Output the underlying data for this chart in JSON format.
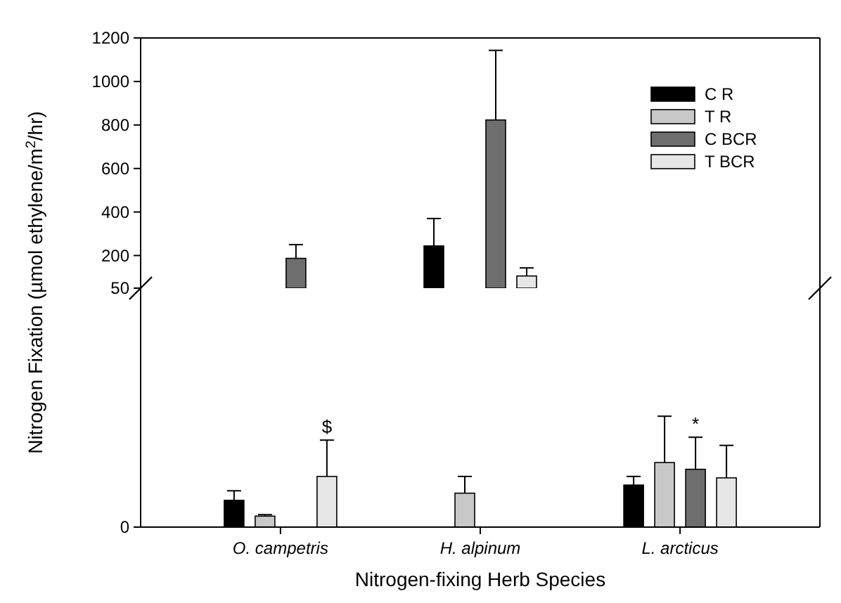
{
  "chart_data": [
    {
      "type": "bar",
      "ylabel": "Nitrogen Fixation (µmol ethylene/m$^{2}$/hr)",
      "categories": [
        null,
        null,
        null
      ],
      "ylim": [
        50,
        1200
      ],
      "yticks": [
        200,
        400,
        600,
        800,
        1000,
        1200
      ],
      "tick_labels": "y",
      "legend": "top right",
      "series": [
        {
          "name": "C R",
          "color": "#000000",
          "values": [
            null,
            244,
            null
          ],
          "errors": [
            null,
            [
              244,
              370
            ],
            null
          ]
        },
        {
          "name": "T R",
          "color": "#c8c8c8",
          "values": [
            null,
            null,
            null
          ]
        },
        {
          "name": "C BCR",
          "color": "#6e6e6e",
          "values": [
            187,
            823,
            null
          ],
          "errors": [
            [
              187,
              250
            ],
            [
              823,
              1143
            ],
            null
          ]
        },
        {
          "name": "T BCR",
          "color": "#e6e6e6",
          "values": [
            null,
            106,
            null
          ],
          "errors": [
            null,
            [
              106,
              143
            ],
            null
          ]
        }
      ]
    },
    {
      "type": "bar",
      "xlabel": "Nitrogen-fixing Herb Species",
      "categories": [
        "O. campetris",
        "H. alpinum",
        "L. arcticus"
      ],
      "ylim": [
        0,
        50
      ],
      "yticks": [
        0,
        50
      ],
      "series": [
        {
          "color": "#000000",
          "values": [
            5.6,
            null,
            8.8
          ],
          "errors": [
            [
              5.6,
              7.6
            ],
            null,
            [
              8.8,
              10.6
            ]
          ]
        },
        {
          "color": "#c8c8c8",
          "values": [
            2.3,
            7.1,
            13.5
          ],
          "errors": [
            [
              2.3,
              2.6
            ],
            [
              7.1,
              10.6
            ],
            [
              13.5,
              23.2
            ]
          ]
        },
        {
          "color": "#6e6e6e",
          "values": [
            null,
            null,
            12.1
          ],
          "errors": [
            null,
            null,
            [
              12.1,
              18.8
            ]
          ],
          "value_labels": [
            null,
            null,
            "*"
          ]
        },
        {
          "color": "#e6e6e6",
          "values": [
            10.6,
            null,
            10.3
          ],
          "errors": [
            [
              10.6,
              18.2
            ],
            null,
            [
              10.3,
              17.1
            ]
          ],
          "value_labels": [
            "$",
            null,
            null
          ]
        }
      ]
    }
  ]
}
